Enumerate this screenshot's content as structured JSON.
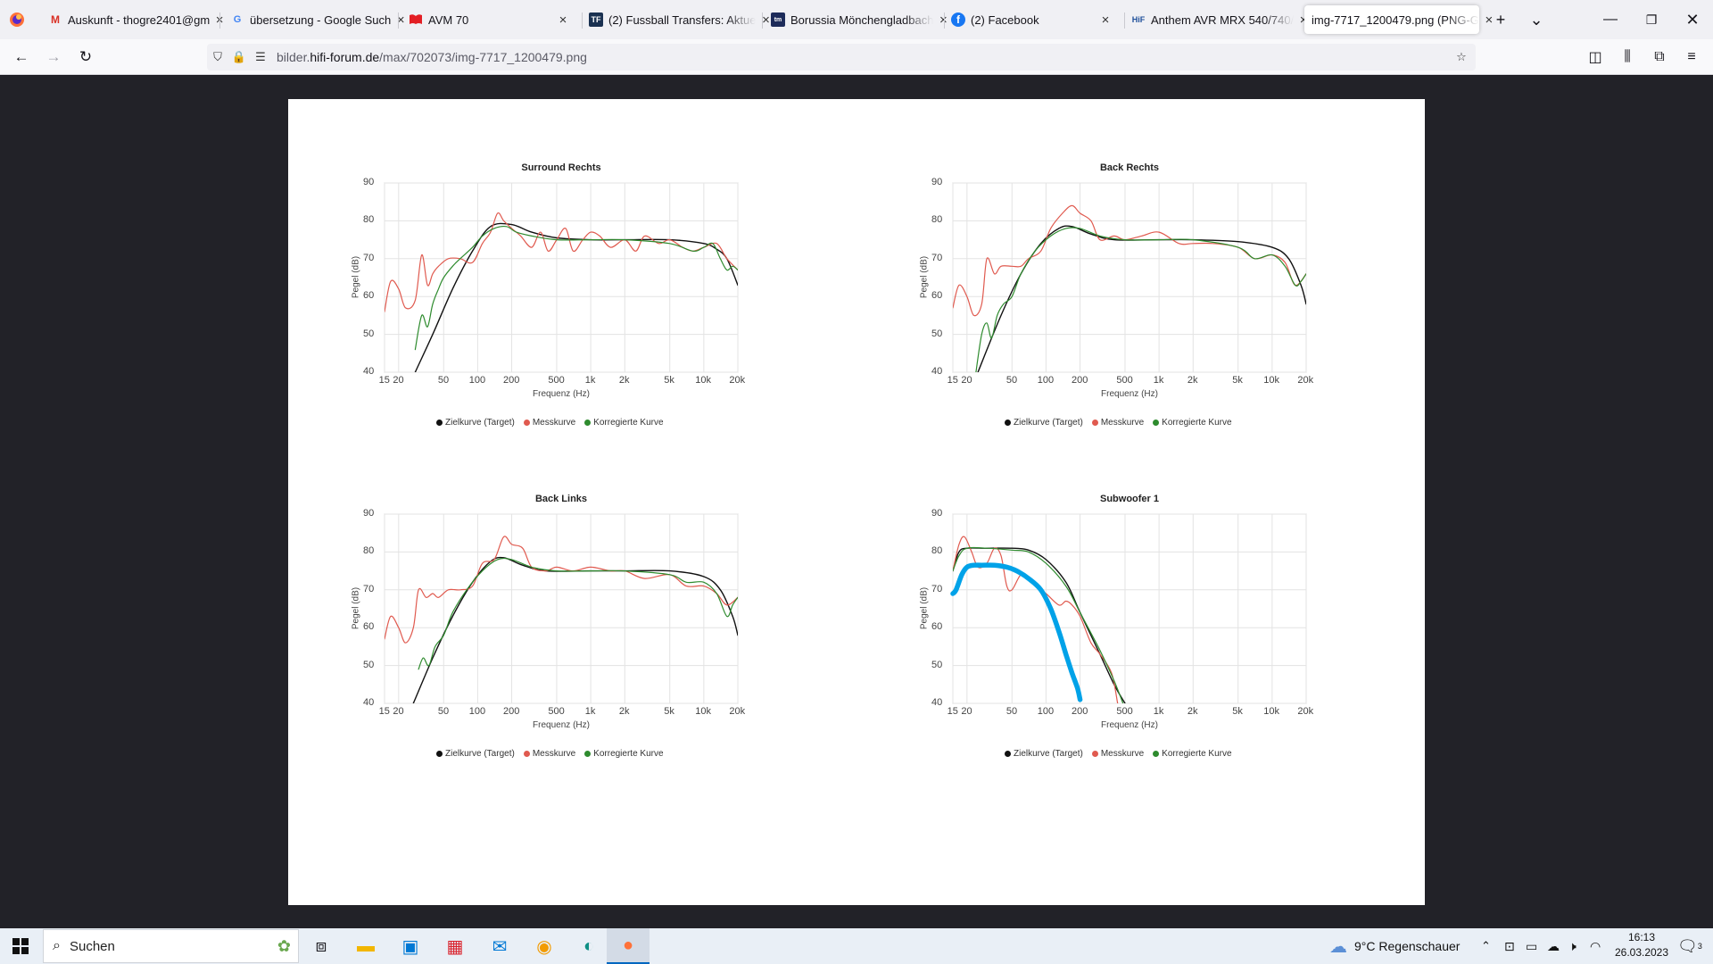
{
  "browser": {
    "tabs": [
      {
        "title": "Auskunft - thogre2401@gm",
        "icon": "gmail-icon",
        "active": false
      },
      {
        "title": "übersetzung - Google Such",
        "icon": "google-icon",
        "active": false
      },
      {
        "title": "AVM 70",
        "icon": "avm-icon",
        "active": false
      },
      {
        "title": "(2) Fussball Transfers: Aktue",
        "icon": "transfermarkt-icon",
        "active": false
      },
      {
        "title": "Borussia Mönchengladbach",
        "icon": "borussia-icon",
        "active": false
      },
      {
        "title": "(2) Facebook",
        "icon": "facebook-icon",
        "active": false
      },
      {
        "title": "Anthem AVR MRX 540/740/",
        "icon": "hifi-forum-icon",
        "active": false
      },
      {
        "title": "img-7717_1200479.png (PNG-G",
        "icon": "image-icon",
        "active": true
      }
    ],
    "url": {
      "domain_prefix": "bilder.",
      "domain_main": "hifi-forum.de",
      "path": "/max/702073/img-7717_1200479.png"
    }
  },
  "charts": [
    {
      "title": "Surround Rechts",
      "ylabel": "Pegel (dB)",
      "xlabel": "Frequenz (Hz)",
      "legend": [
        "Zielkurve (Target)",
        "Messkurve",
        "Korregierte Kurve"
      ]
    },
    {
      "title": "Back Rechts",
      "ylabel": "Pegel (dB)",
      "xlabel": "Frequenz (Hz)",
      "legend": [
        "Zielkurve (Target)",
        "Messkurve",
        "Korregierte Kurve"
      ]
    },
    {
      "title": "Back Links",
      "ylabel": "Pegel (dB)",
      "xlabel": "Frequenz (Hz)",
      "legend": [
        "Zielkurve (Target)",
        "Messkurve",
        "Korregierte Kurve"
      ]
    },
    {
      "title": "Subwoofer 1",
      "ylabel": "Pegel (dB)",
      "xlabel": "Frequenz (Hz)",
      "legend": [
        "Zielkurve (Target)",
        "Messkurve",
        "Korregierte Kurve"
      ]
    }
  ],
  "chart_data": [
    {
      "type": "line",
      "title": "Surround Rechts",
      "xlabel": "Frequenz (Hz)",
      "ylabel": "Pegel (dB)",
      "xscale": "log",
      "xlim": [
        15,
        20000
      ],
      "ylim": [
        40,
        90
      ],
      "xticks": [
        {
          "v": 15,
          "l": "15"
        },
        {
          "v": 20,
          "l": "20"
        },
        {
          "v": 50,
          "l": "50"
        },
        {
          "v": 100,
          "l": "100"
        },
        {
          "v": 200,
          "l": "200"
        },
        {
          "v": 500,
          "l": "500"
        },
        {
          "v": 1000,
          "l": "1k"
        },
        {
          "v": 2000,
          "l": "2k"
        },
        {
          "v": 5000,
          "l": "5k"
        },
        {
          "v": 10000,
          "l": "10k"
        },
        {
          "v": 20000,
          "l": "20k"
        }
      ],
      "yticks": [
        40,
        50,
        60,
        70,
        80,
        90
      ],
      "legend_position": "bottom",
      "series": [
        {
          "name": "Zielkurve (Target)",
          "color": "#111111",
          "x": [
            28,
            40,
            60,
            90,
            130,
            200,
            300,
            500,
            1000,
            2000,
            5000,
            10000,
            13000,
            16000,
            20000
          ],
          "y": [
            40,
            50,
            62,
            72,
            78.5,
            79,
            77,
            75.5,
            75,
            75,
            75,
            74,
            72.5,
            70,
            63
          ]
        },
        {
          "name": "Messkurve",
          "color": "#e05a4f",
          "x": [
            15,
            17,
            20,
            23,
            28,
            32,
            36,
            40,
            45,
            55,
            70,
            90,
            110,
            130,
            150,
            170,
            200,
            240,
            300,
            360,
            420,
            500,
            600,
            700,
            850,
            1000,
            1200,
            1500,
            2000,
            2500,
            3000,
            4000,
            5000,
            6500,
            8000,
            10000,
            13000,
            16000,
            20000
          ],
          "y": [
            56,
            64,
            62,
            57,
            59,
            71,
            63,
            66,
            68,
            70,
            70,
            69,
            74,
            77,
            82,
            80,
            78,
            76,
            73,
            77,
            72,
            75,
            78,
            72,
            75,
            77,
            76,
            73,
            75,
            72,
            76,
            74,
            75,
            73,
            72,
            73,
            74,
            70,
            67
          ]
        },
        {
          "name": "Korregierte Kurve",
          "color": "#2e8b2e",
          "x": [
            28,
            32,
            36,
            40,
            45,
            50,
            60,
            70,
            90,
            110,
            140,
            180,
            220,
            300,
            500,
            1000,
            2000,
            5000,
            8000,
            10000,
            12000,
            14000,
            16000,
            18000,
            20000
          ],
          "y": [
            46,
            55,
            52,
            58,
            62,
            65,
            68,
            70,
            73,
            76,
            78,
            78.5,
            77,
            76,
            75,
            75,
            75,
            74,
            72,
            73,
            74,
            70,
            67,
            68,
            67
          ]
        }
      ]
    },
    {
      "type": "line",
      "title": "Back Rechts",
      "xlabel": "Frequenz (Hz)",
      "ylabel": "Pegel (dB)",
      "xscale": "log",
      "xlim": [
        15,
        20000
      ],
      "ylim": [
        40,
        90
      ],
      "xticks": [
        {
          "v": 15,
          "l": "15"
        },
        {
          "v": 20,
          "l": "20"
        },
        {
          "v": 50,
          "l": "50"
        },
        {
          "v": 100,
          "l": "100"
        },
        {
          "v": 200,
          "l": "200"
        },
        {
          "v": 500,
          "l": "500"
        },
        {
          "v": 1000,
          "l": "1k"
        },
        {
          "v": 2000,
          "l": "2k"
        },
        {
          "v": 5000,
          "l": "5k"
        },
        {
          "v": 10000,
          "l": "10k"
        },
        {
          "v": 20000,
          "l": "20k"
        }
      ],
      "yticks": [
        40,
        50,
        60,
        70,
        80,
        90
      ],
      "legend_position": "bottom",
      "series": [
        {
          "name": "Zielkurve (Target)",
          "color": "#111111",
          "x": [
            25,
            40,
            60,
            90,
            130,
            170,
            250,
            400,
            1000,
            2000,
            5000,
            10000,
            14000,
            18000,
            20000
          ],
          "y": [
            40,
            55,
            66,
            74,
            78,
            78.5,
            76.5,
            75,
            75,
            75,
            74.5,
            73,
            70,
            63,
            58
          ]
        },
        {
          "name": "Messkurve",
          "color": "#e05a4f",
          "x": [
            15,
            17,
            20,
            23,
            27,
            30,
            35,
            40,
            50,
            60,
            70,
            90,
            110,
            140,
            170,
            200,
            250,
            300,
            400,
            500,
            700,
            1000,
            1500,
            2000,
            3000,
            5000,
            7000,
            10000,
            13000,
            16000,
            20000
          ],
          "y": [
            57,
            63,
            60,
            55,
            58,
            70,
            66,
            68,
            68,
            68,
            70,
            72,
            78,
            82,
            84,
            82,
            80,
            75,
            76,
            75,
            76,
            77,
            74,
            74,
            74,
            73,
            70,
            71,
            69,
            63,
            66
          ]
        },
        {
          "name": "Korregierte Kurve",
          "color": "#2e8b2e",
          "x": [
            24,
            27,
            30,
            33,
            37,
            42,
            50,
            60,
            80,
            110,
            150,
            200,
            300,
            500,
            1000,
            2000,
            5000,
            7000,
            10000,
            13000,
            16000,
            18000,
            20000
          ],
          "y": [
            40,
            50,
            53,
            49,
            55,
            58,
            60,
            66,
            72,
            76,
            78,
            78,
            76,
            75,
            75,
            75,
            73,
            70,
            71,
            68,
            63,
            64,
            66
          ]
        }
      ]
    },
    {
      "type": "line",
      "title": "Back Links",
      "xlabel": "Frequenz (Hz)",
      "ylabel": "Pegel (dB)",
      "xscale": "log",
      "xlim": [
        15,
        20000
      ],
      "ylim": [
        40,
        90
      ],
      "xticks": [
        {
          "v": 15,
          "l": "15"
        },
        {
          "v": 20,
          "l": "20"
        },
        {
          "v": 50,
          "l": "50"
        },
        {
          "v": 100,
          "l": "100"
        },
        {
          "v": 200,
          "l": "200"
        },
        {
          "v": 500,
          "l": "500"
        },
        {
          "v": 1000,
          "l": "1k"
        },
        {
          "v": 2000,
          "l": "2k"
        },
        {
          "v": 5000,
          "l": "5k"
        },
        {
          "v": 10000,
          "l": "10k"
        },
        {
          "v": 20000,
          "l": "20k"
        }
      ],
      "yticks": [
        40,
        50,
        60,
        70,
        80,
        90
      ],
      "legend_position": "bottom",
      "series": [
        {
          "name": "Zielkurve (Target)",
          "color": "#111111",
          "x": [
            27,
            40,
            60,
            90,
            130,
            170,
            250,
            400,
            1000,
            2000,
            5000,
            10000,
            14000,
            18000,
            20000
          ],
          "y": [
            40,
            52,
            63,
            72,
            77.5,
            78.5,
            76.5,
            75,
            75,
            75,
            75,
            73.5,
            70,
            63,
            58
          ]
        },
        {
          "name": "Messkurve",
          "color": "#e05a4f",
          "x": [
            15,
            17,
            20,
            23,
            27,
            30,
            35,
            40,
            45,
            55,
            70,
            90,
            110,
            140,
            170,
            200,
            250,
            300,
            400,
            500,
            700,
            1000,
            1500,
            2000,
            3000,
            5000,
            7000,
            10000,
            13000,
            16000,
            20000
          ],
          "y": [
            57,
            63,
            60,
            56,
            60,
            70,
            68,
            69,
            68,
            70,
            70,
            71,
            77,
            78,
            84,
            82,
            81,
            76,
            75,
            76,
            75,
            76,
            75,
            75,
            73,
            74,
            71,
            71,
            69,
            66,
            68
          ]
        },
        {
          "name": "Korregierte Kurve",
          "color": "#2e8b2e",
          "x": [
            30,
            33,
            37,
            42,
            50,
            60,
            80,
            110,
            150,
            200,
            300,
            500,
            1000,
            2000,
            5000,
            7000,
            10000,
            13000,
            16000,
            18000,
            20000
          ],
          "y": [
            49,
            52,
            50,
            55,
            58,
            64,
            70,
            75,
            78,
            78,
            76,
            75,
            75,
            75,
            74,
            72,
            72,
            69,
            63,
            66,
            68
          ]
        }
      ]
    },
    {
      "type": "line",
      "title": "Subwoofer 1",
      "xlabel": "Frequenz (Hz)",
      "ylabel": "Pegel (dB)",
      "xscale": "log",
      "xlim": [
        15,
        20000
      ],
      "ylim": [
        40,
        90
      ],
      "xticks": [
        {
          "v": 15,
          "l": "15"
        },
        {
          "v": 20,
          "l": "20"
        },
        {
          "v": 50,
          "l": "50"
        },
        {
          "v": 100,
          "l": "100"
        },
        {
          "v": 200,
          "l": "200"
        },
        {
          "v": 500,
          "l": "500"
        },
        {
          "v": 1000,
          "l": "1k"
        },
        {
          "v": 2000,
          "l": "2k"
        },
        {
          "v": 5000,
          "l": "5k"
        },
        {
          "v": 10000,
          "l": "10k"
        },
        {
          "v": 20000,
          "l": "20k"
        }
      ],
      "yticks": [
        40,
        50,
        60,
        70,
        80,
        90
      ],
      "legend_position": "bottom",
      "series": [
        {
          "name": "Zielkurve (Target)",
          "color": "#111111",
          "x": [
            15,
            17,
            20,
            30,
            50,
            70,
            100,
            150,
            200,
            300,
            400,
            500
          ],
          "y": [
            75,
            80,
            81,
            81,
            81,
            80.5,
            78,
            72,
            64,
            53,
            45,
            40
          ]
        },
        {
          "name": "Messkurve",
          "color": "#e05a4f",
          "x": [
            15,
            17,
            19,
            22,
            25,
            30,
            35,
            40,
            45,
            50,
            60,
            70,
            80,
            100,
            130,
            150,
            170,
            200,
            250,
            300,
            380,
            430
          ],
          "y": [
            75,
            82,
            84,
            80,
            76,
            77,
            81,
            79,
            71,
            70,
            74,
            73,
            71,
            69,
            66,
            67,
            66,
            63,
            56,
            53,
            48,
            40
          ]
        },
        {
          "name": "Korregierte Kurve",
          "color": "#2e8b2e",
          "x": [
            15,
            17,
            20,
            30,
            50,
            70,
            100,
            150,
            200,
            300,
            400,
            480
          ],
          "y": [
            75,
            79,
            81,
            81,
            80.5,
            80,
            77,
            71,
            64,
            54,
            46,
            40
          ]
        },
        {
          "name": "",
          "color": "#00a2e8",
          "x": [
            15,
            16,
            18,
            20,
            23,
            27,
            35,
            45,
            55,
            70,
            90,
            110,
            130,
            150,
            170,
            190,
            200
          ],
          "y": [
            69,
            70,
            74,
            76,
            76.5,
            76.5,
            76.5,
            76,
            75,
            73,
            70,
            65,
            59,
            53,
            48,
            44,
            41
          ]
        }
      ]
    }
  ],
  "taskbar": {
    "search_placeholder": "Suchen",
    "weather": "9°C  Regenschauer",
    "time": "16:13",
    "date": "26.03.2023",
    "notification_count": "3"
  }
}
